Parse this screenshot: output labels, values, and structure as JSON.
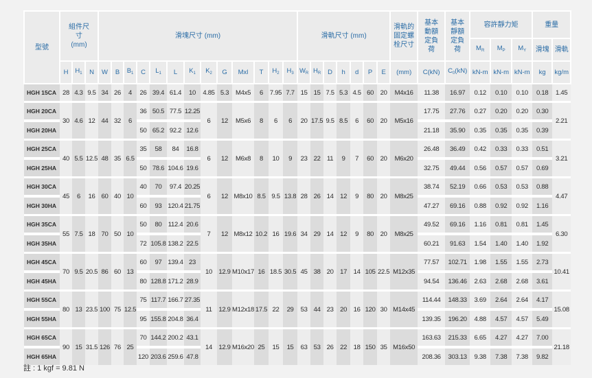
{
  "header": {
    "model": "型號",
    "assembly": "組件尺寸 (mm)",
    "block": "滑塊尺寸 (mm)",
    "rail": "滑軌尺寸 (mm)",
    "bolt": "滑軌的固定螺栓尺寸",
    "dynamic_load": "基本動額定負荷",
    "static_load": "基本靜額定負荷",
    "static_moment": "容許靜力矩",
    "weight": "重量",
    "moment_cols": [
      {
        "sym": "M",
        "sub": "R"
      },
      {
        "sym": "M",
        "sub": "P"
      },
      {
        "sym": "M",
        "sub": "Y"
      }
    ],
    "weight_cols": [
      "滑塊",
      "滑軌"
    ],
    "dim_cols": [
      {
        "sym": "H",
        "sub": ""
      },
      {
        "sym": "H",
        "sub": "1"
      },
      {
        "sym": "N",
        "sub": ""
      },
      {
        "sym": "W",
        "sub": ""
      },
      {
        "sym": "B",
        "sub": ""
      },
      {
        "sym": "B",
        "sub": "1"
      },
      {
        "sym": "C",
        "sub": ""
      },
      {
        "sym": "L",
        "sub": "1"
      },
      {
        "sym": "L",
        "sub": ""
      },
      {
        "sym": "K",
        "sub": "1"
      },
      {
        "sym": "K",
        "sub": "2"
      },
      {
        "sym": "G",
        "sub": ""
      },
      {
        "sym": "Mxl",
        "sub": ""
      },
      {
        "sym": "T",
        "sub": ""
      },
      {
        "sym": "H",
        "sub": "2"
      },
      {
        "sym": "H",
        "sub": "3"
      },
      {
        "sym": "W",
        "sub": "R"
      },
      {
        "sym": "H",
        "sub": "R"
      },
      {
        "sym": "D",
        "sub": ""
      },
      {
        "sym": "h",
        "sub": ""
      },
      {
        "sym": "d",
        "sub": ""
      },
      {
        "sym": "P",
        "sub": ""
      },
      {
        "sym": "E",
        "sub": ""
      }
    ],
    "bolt_unit": "(mm)",
    "c_unit": "C(kN)",
    "c0_unit": {
      "sym": "C",
      "sub": "0",
      "unit": "(kN)"
    },
    "moment_units": [
      "kN-m",
      "kN-m",
      "kN-m"
    ],
    "weight_units": [
      "kg",
      "kg/m"
    ]
  },
  "groups": [
    {
      "models": [
        "HGH 15CA"
      ],
      "single": [
        "28",
        "4.3",
        "9.5",
        "34",
        "26",
        "4",
        "26",
        "39.4",
        "61.4",
        "10",
        "4.85",
        "5.3",
        "M4x5",
        "6",
        "7.95",
        "7.7",
        "15",
        "15",
        "7.5",
        "5.3",
        "4.5",
        "60",
        "20",
        "M4x16",
        "11.38",
        "16.97",
        "0.12",
        "0.10",
        "0.10",
        "0.18",
        "1.45"
      ]
    },
    {
      "models": [
        "HGH 20CA",
        "HGH 20HA"
      ],
      "shared": [
        "30",
        "4.6",
        "12",
        "44",
        "32",
        "6",
        "6",
        "12",
        "M5x6",
        "8",
        "6",
        "6",
        "20",
        "17.5",
        "9.5",
        "8.5",
        "6",
        "60",
        "20",
        "M5x16",
        "2.21"
      ],
      "blocks": [
        [
          "36",
          "50.5",
          "77.5",
          "12.25",
          "17.75",
          "27.76",
          "0.27",
          "0.20",
          "0.20",
          "0.30"
        ],
        [
          "50",
          "65.2",
          "92.2",
          "12.6",
          "21.18",
          "35.90",
          "0.35",
          "0.35",
          "0.35",
          "0.39"
        ]
      ]
    },
    {
      "models": [
        "HGH 25CA",
        "HGH 25HA"
      ],
      "shared": [
        "40",
        "5.5",
        "12.5",
        "48",
        "35",
        "6.5",
        "6",
        "12",
        "M6x8",
        "8",
        "10",
        "9",
        "23",
        "22",
        "11",
        "9",
        "7",
        "60",
        "20",
        "M6x20",
        "3.21"
      ],
      "blocks": [
        [
          "35",
          "58",
          "84",
          "16.8",
          "26.48",
          "36.49",
          "0.42",
          "0.33",
          "0.33",
          "0.51"
        ],
        [
          "50",
          "78.6",
          "104.6",
          "19.6",
          "32.75",
          "49.44",
          "0.56",
          "0.57",
          "0.57",
          "0.69"
        ]
      ]
    },
    {
      "models": [
        "HGH 30CA",
        "HGH 30HA"
      ],
      "shared": [
        "45",
        "6",
        "16",
        "60",
        "40",
        "10",
        "6",
        "12",
        "M8x10",
        "8.5",
        "9.5",
        "13.8",
        "28",
        "26",
        "14",
        "12",
        "9",
        "80",
        "20",
        "M8x25",
        "4.47"
      ],
      "blocks": [
        [
          "40",
          "70",
          "97.4",
          "20.25",
          "38.74",
          "52.19",
          "0.66",
          "0.53",
          "0.53",
          "0.88"
        ],
        [
          "60",
          "93",
          "120.4",
          "21.75",
          "47.27",
          "69.16",
          "0.88",
          "0.92",
          "0.92",
          "1.16"
        ]
      ]
    },
    {
      "models": [
        "HGH 35CA",
        "HGH 35HA"
      ],
      "shared": [
        "55",
        "7.5",
        "18",
        "70",
        "50",
        "10",
        "7",
        "12",
        "M8x12",
        "10.2",
        "16",
        "19.6",
        "34",
        "29",
        "14",
        "12",
        "9",
        "80",
        "20",
        "M8x25",
        "6.30"
      ],
      "blocks": [
        [
          "50",
          "80",
          "112.4",
          "20.6",
          "49.52",
          "69.16",
          "1.16",
          "0.81",
          "0.81",
          "1.45"
        ],
        [
          "72",
          "105.8",
          "138.2",
          "22.5",
          "60.21",
          "91.63",
          "1.54",
          "1.40",
          "1.40",
          "1.92"
        ]
      ]
    },
    {
      "models": [
        "HGH 45CA",
        "HGH 45HA"
      ],
      "shared": [
        "70",
        "9.5",
        "20.5",
        "86",
        "60",
        "13",
        "10",
        "12.9",
        "M10x17",
        "16",
        "18.5",
        "30.5",
        "45",
        "38",
        "20",
        "17",
        "14",
        "105",
        "22.5",
        "M12x35",
        "10.41"
      ],
      "blocks": [
        [
          "60",
          "97",
          "139.4",
          "23",
          "77.57",
          "102.71",
          "1.98",
          "1.55",
          "1.55",
          "2.73"
        ],
        [
          "80",
          "128.8",
          "171.2",
          "28.9",
          "94.54",
          "136.46",
          "2.63",
          "2.68",
          "2.68",
          "3.61"
        ]
      ]
    },
    {
      "models": [
        "HGH 55CA",
        "HGH 55HA"
      ],
      "shared": [
        "80",
        "13",
        "23.5",
        "100",
        "75",
        "12.5",
        "11",
        "12.9",
        "M12x18",
        "17.5",
        "22",
        "29",
        "53",
        "44",
        "23",
        "20",
        "16",
        "120",
        "30",
        "M14x45",
        "15.08"
      ],
      "blocks": [
        [
          "75",
          "117.7",
          "166.7",
          "27.35",
          "114.44",
          "148.33",
          "3.69",
          "2.64",
          "2.64",
          "4.17"
        ],
        [
          "95",
          "155.8",
          "204.8",
          "36.4",
          "139.35",
          "196.20",
          "4.88",
          "4.57",
          "4.57",
          "5.49"
        ]
      ]
    },
    {
      "models": [
        "HGH 65CA",
        "HGH 65HA"
      ],
      "shared": [
        "90",
        "15",
        "31.5",
        "126",
        "76",
        "25",
        "14",
        "12.9",
        "M16x20",
        "25",
        "15",
        "15",
        "63",
        "53",
        "26",
        "22",
        "18",
        "150",
        "35",
        "M16x50",
        "21.18"
      ],
      "blocks": [
        [
          "70",
          "144.2",
          "200.2",
          "43.1",
          "163.63",
          "215.33",
          "6.65",
          "4.27",
          "4.27",
          "7.00"
        ],
        [
          "120",
          "203.6",
          "259.6",
          "47.8",
          "208.36",
          "303.13",
          "9.38",
          "7.38",
          "7.38",
          "9.82"
        ]
      ]
    }
  ],
  "note": "註 : 1 kgf = 9.81 N",
  "colors": {
    "header_text": "#2a6ca6",
    "header_bg": "#ebebeb",
    "cell_light": "#ededed",
    "cell_dark": "#dcdcdc"
  }
}
